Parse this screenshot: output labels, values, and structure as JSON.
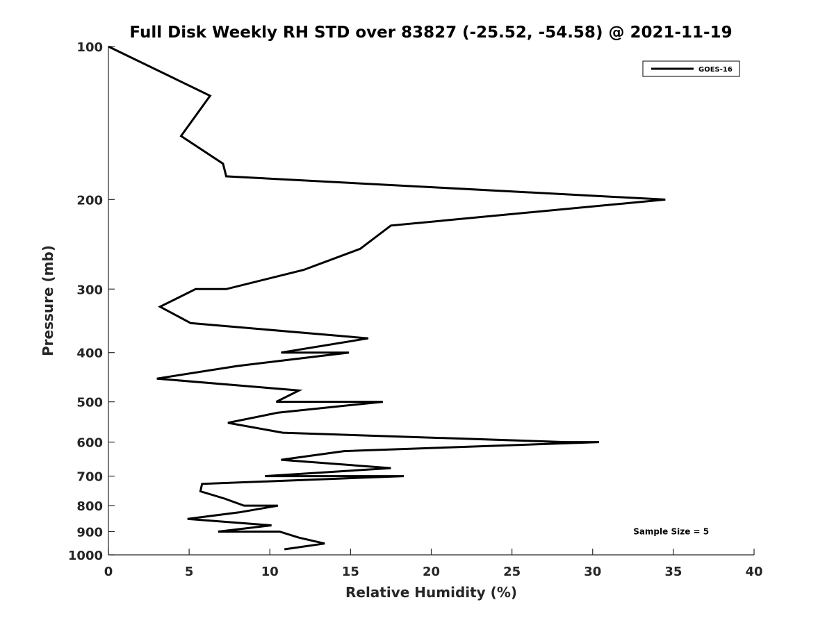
{
  "chart_data": {
    "type": "line",
    "title": "Full Disk Weekly RH STD over 83827 (-25.52, -54.58) @ 2021-11-19",
    "xlabel": "Relative Humidity (%)",
    "ylabel": "Pressure (mb)",
    "xlim": [
      0,
      40
    ],
    "ylim": [
      1000,
      100
    ],
    "yscale": "log",
    "y_reversed": true,
    "grid": false,
    "legend_placement": "top-right",
    "x_ticks": [
      0,
      5,
      10,
      15,
      20,
      25,
      30,
      35,
      40
    ],
    "x_tick_labels": [
      "0",
      "5",
      "10",
      "15",
      "20",
      "25",
      "30",
      "35",
      "40"
    ],
    "y_ticks": [
      100,
      200,
      300,
      400,
      500,
      600,
      700,
      800,
      900,
      1000
    ],
    "y_tick_labels": [
      "100",
      "200",
      "300",
      "400",
      "500",
      "600",
      "700",
      "800",
      "900",
      "1000"
    ],
    "series": [
      {
        "name": "GOES-16",
        "color": "#000000",
        "points": [
          [
            0.0,
            100
          ],
          [
            6.3,
            125
          ],
          [
            4.5,
            150
          ],
          [
            7.1,
            170
          ],
          [
            7.3,
            180
          ],
          [
            34.5,
            200
          ],
          [
            17.5,
            225
          ],
          [
            15.6,
            250
          ],
          [
            12.1,
            275
          ],
          [
            7.3,
            300
          ],
          [
            5.4,
            300
          ],
          [
            3.2,
            325
          ],
          [
            5.1,
            350
          ],
          [
            16.1,
            375
          ],
          [
            10.7,
            400
          ],
          [
            14.9,
            400
          ],
          [
            8.0,
            425
          ],
          [
            3.0,
            450
          ],
          [
            11.8,
            475
          ],
          [
            10.4,
            500
          ],
          [
            17.0,
            500
          ],
          [
            10.5,
            525
          ],
          [
            7.4,
            550
          ],
          [
            10.8,
            575
          ],
          [
            28.3,
            600
          ],
          [
            30.4,
            600
          ],
          [
            14.6,
            625
          ],
          [
            10.7,
            650
          ],
          [
            17.5,
            675
          ],
          [
            9.7,
            700
          ],
          [
            18.3,
            700
          ],
          [
            5.8,
            725
          ],
          [
            5.7,
            750
          ],
          [
            7.2,
            775
          ],
          [
            8.4,
            800
          ],
          [
            10.5,
            800
          ],
          [
            8.1,
            825
          ],
          [
            4.9,
            850
          ],
          [
            10.1,
            875
          ],
          [
            6.8,
            900
          ],
          [
            10.6,
            900
          ],
          [
            11.8,
            925
          ],
          [
            13.4,
            950
          ],
          [
            10.9,
            975
          ]
        ]
      }
    ],
    "annotations": [
      {
        "text": "Sample Size = 5",
        "x": 32,
        "y": 900
      }
    ]
  }
}
